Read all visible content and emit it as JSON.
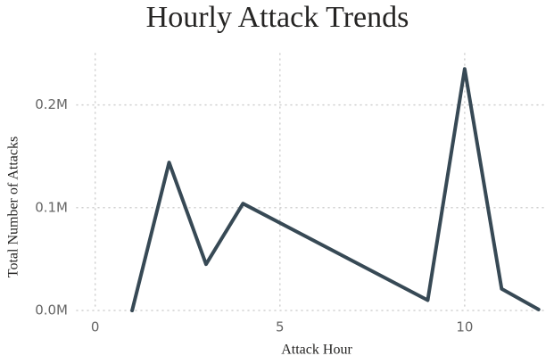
{
  "chart_data": {
    "type": "line",
    "title": "Hourly Attack Trends",
    "x_label": "Attack Hour",
    "y_label": "Total Number of Attacks",
    "x": [
      1,
      2,
      3,
      4,
      9,
      10,
      11,
      12
    ],
    "series": [
      {
        "name": "Total Number of Attacks",
        "color": "#374955",
        "values": [
          0,
          144000,
          45000,
          104000,
          10000,
          235000,
          21000,
          1000
        ]
      }
    ],
    "xlim": [
      -0.5,
      12.2
    ],
    "ylim": [
      0,
      250000
    ],
    "xticks": [
      0,
      5,
      10
    ],
    "yticks": [
      {
        "value": 0,
        "label": "0.0M"
      },
      {
        "value": 100000,
        "label": "0.1M"
      },
      {
        "value": 200000,
        "label": "0.2M"
      }
    ],
    "grid": true
  }
}
